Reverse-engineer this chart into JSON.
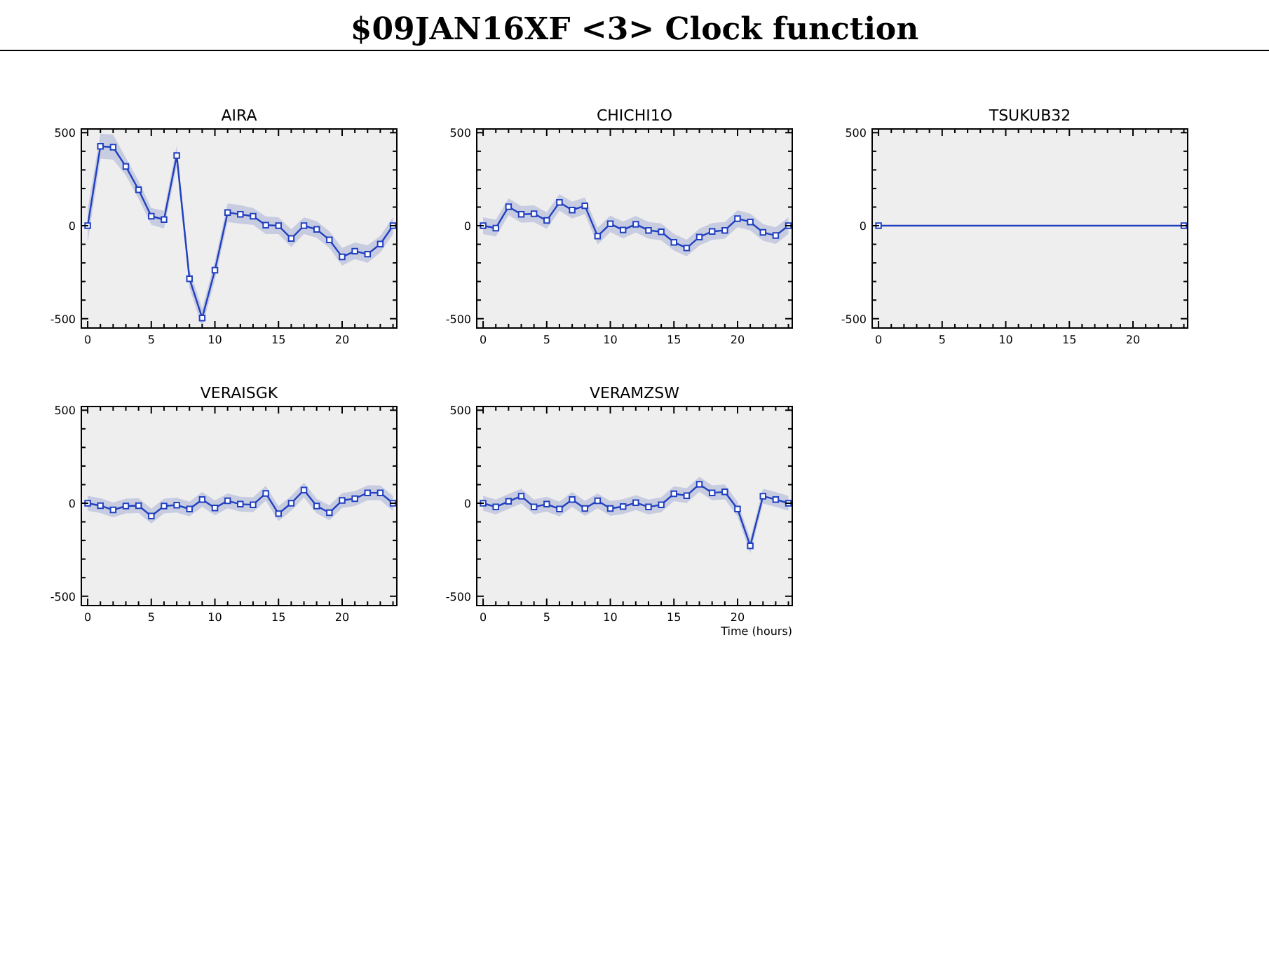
{
  "chart_data": [
    {
      "type": "other",
      "title": "$09JAN16XF <3>  Clock function"
    },
    {
      "type": "line",
      "title": "AIRA",
      "xlim": [
        -0.5,
        24.3
      ],
      "ylim": [
        -550,
        520
      ],
      "xticks": [
        0,
        {
          "value": 1,
          "label": null
        },
        {
          "value": 2,
          "label": null
        },
        {
          "value": 3,
          "label": null
        },
        {
          "value": 4,
          "label": null
        },
        5,
        {
          "value": 6,
          "label": null
        },
        {
          "value": 7,
          "label": null
        },
        {
          "value": 8,
          "label": null
        },
        {
          "value": 9,
          "label": null
        },
        10,
        {
          "value": 11,
          "label": null
        },
        {
          "value": 12,
          "label": null
        },
        {
          "value": 13,
          "label": null
        },
        {
          "value": 14,
          "label": null
        },
        15,
        {
          "value": 16,
          "label": null
        },
        {
          "value": 17,
          "label": null
        },
        {
          "value": 18,
          "label": null
        },
        {
          "value": 19,
          "label": null
        },
        20,
        {
          "value": 21,
          "label": null
        },
        {
          "value": 22,
          "label": null
        },
        {
          "value": 23,
          "label": null
        },
        {
          "value": 24,
          "label": null
        }
      ],
      "yticks": [
        -500,
        {
          "value": -400,
          "label": null
        },
        {
          "value": -300,
          "label": null
        },
        {
          "value": -200,
          "label": null
        },
        {
          "value": -100,
          "label": null
        },
        0,
        {
          "value": 100,
          "label": null
        },
        {
          "value": 200,
          "label": null
        },
        {
          "value": 300,
          "label": null
        },
        {
          "value": 400,
          "label": null
        },
        500
      ],
      "grid": false,
      "marker": "square",
      "line_style": "solid",
      "x": [
        0,
        1,
        2,
        3,
        4,
        5,
        6,
        7,
        8,
        9,
        10,
        11,
        12,
        13,
        14,
        15,
        16,
        17,
        18,
        19,
        20,
        21,
        22,
        23,
        24
      ],
      "series": [
        {
          "color": "#2040c0",
          "values": [
            0,
            427,
            422,
            318,
            193,
            51,
            33,
            377,
            -285,
            -496,
            -239,
            71,
            61,
            51,
            3,
            0,
            -69,
            0,
            -20,
            -76,
            -168,
            -137,
            -153,
            -99,
            0
          ],
          "lower": [
            -90,
            360,
            355,
            270,
            145,
            5,
            -15,
            320,
            -335,
            -545,
            -290,
            20,
            10,
            5,
            -45,
            -45,
            -115,
            -45,
            -65,
            -120,
            -215,
            -180,
            -200,
            -145,
            -45
          ],
          "upper": [
            90,
            495,
            490,
            365,
            240,
            95,
            80,
            430,
            -235,
            -445,
            -190,
            120,
            110,
            95,
            50,
            45,
            -20,
            45,
            25,
            -30,
            -120,
            -90,
            -105,
            -55,
            45
          ]
        }
      ]
    },
    {
      "type": "line",
      "title": "CHICHI1O",
      "xlim": [
        -0.5,
        24.3
      ],
      "ylim": [
        -550,
        520
      ],
      "xticks": [
        0,
        {
          "value": 1,
          "label": null
        },
        {
          "value": 2,
          "label": null
        },
        {
          "value": 3,
          "label": null
        },
        {
          "value": 4,
          "label": null
        },
        5,
        {
          "value": 6,
          "label": null
        },
        {
          "value": 7,
          "label": null
        },
        {
          "value": 8,
          "label": null
        },
        {
          "value": 9,
          "label": null
        },
        10,
        {
          "value": 11,
          "label": null
        },
        {
          "value": 12,
          "label": null
        },
        {
          "value": 13,
          "label": null
        },
        {
          "value": 14,
          "label": null
        },
        15,
        {
          "value": 16,
          "label": null
        },
        {
          "value": 17,
          "label": null
        },
        {
          "value": 18,
          "label": null
        },
        {
          "value": 19,
          "label": null
        },
        20,
        {
          "value": 21,
          "label": null
        },
        {
          "value": 22,
          "label": null
        },
        {
          "value": 23,
          "label": null
        },
        {
          "value": 24,
          "label": null
        }
      ],
      "yticks": [
        -500,
        {
          "value": -400,
          "label": null
        },
        {
          "value": -300,
          "label": null
        },
        {
          "value": -200,
          "label": null
        },
        {
          "value": -100,
          "label": null
        },
        0,
        {
          "value": 100,
          "label": null
        },
        {
          "value": 200,
          "label": null
        },
        {
          "value": 300,
          "label": null
        },
        {
          "value": 400,
          "label": null
        },
        500
      ],
      "grid": false,
      "marker": "square",
      "line_style": "solid",
      "x": [
        0,
        1,
        2,
        3,
        4,
        5,
        6,
        7,
        8,
        9,
        10,
        11,
        12,
        13,
        14,
        15,
        16,
        17,
        18,
        19,
        20,
        21,
        22,
        23,
        24
      ],
      "series": [
        {
          "color": "#2040c0",
          "values": [
            0,
            -13,
            102,
            61,
            64,
            28,
            125,
            84,
            107,
            -56,
            10,
            -23,
            8,
            -25,
            -33,
            -89,
            -120,
            -61,
            -31,
            -25,
            38,
            20,
            -36,
            -53,
            0
          ],
          "lower": [
            -45,
            -58,
            57,
            16,
            19,
            -17,
            80,
            39,
            62,
            -101,
            -35,
            -68,
            -37,
            -70,
            -78,
            -134,
            -165,
            -106,
            -76,
            -70,
            -7,
            -25,
            -81,
            -98,
            -45
          ],
          "upper": [
            45,
            32,
            147,
            106,
            109,
            73,
            170,
            129,
            152,
            -11,
            55,
            22,
            53,
            20,
            12,
            -44,
            -75,
            -16,
            14,
            20,
            83,
            65,
            9,
            -8,
            45
          ]
        }
      ]
    },
    {
      "type": "line",
      "title": "TSUKUB32",
      "xlim": [
        -0.5,
        24.3
      ],
      "ylim": [
        -550,
        520
      ],
      "xticks": [
        0,
        {
          "value": 1,
          "label": null
        },
        {
          "value": 2,
          "label": null
        },
        {
          "value": 3,
          "label": null
        },
        {
          "value": 4,
          "label": null
        },
        5,
        {
          "value": 6,
          "label": null
        },
        {
          "value": 7,
          "label": null
        },
        {
          "value": 8,
          "label": null
        },
        {
          "value": 9,
          "label": null
        },
        10,
        {
          "value": 11,
          "label": null
        },
        {
          "value": 12,
          "label": null
        },
        {
          "value": 13,
          "label": null
        },
        {
          "value": 14,
          "label": null
        },
        15,
        {
          "value": 16,
          "label": null
        },
        {
          "value": 17,
          "label": null
        },
        {
          "value": 18,
          "label": null
        },
        {
          "value": 19,
          "label": null
        },
        20,
        {
          "value": 21,
          "label": null
        },
        {
          "value": 22,
          "label": null
        },
        {
          "value": 23,
          "label": null
        },
        {
          "value": 24,
          "label": null
        }
      ],
      "yticks": [
        -500,
        {
          "value": -400,
          "label": null
        },
        {
          "value": -300,
          "label": null
        },
        {
          "value": -200,
          "label": null
        },
        {
          "value": -100,
          "label": null
        },
        0,
        {
          "value": 100,
          "label": null
        },
        {
          "value": 200,
          "label": null
        },
        {
          "value": 300,
          "label": null
        },
        {
          "value": 400,
          "label": null
        },
        500
      ],
      "grid": false,
      "marker": "square",
      "line_style": "solid",
      "x": [
        0,
        24
      ],
      "series": [
        {
          "color": "#2040c0",
          "values": [
            0,
            0
          ]
        }
      ]
    },
    {
      "type": "line",
      "title": "VERAISGK",
      "xlim": [
        -0.5,
        24.3
      ],
      "ylim": [
        -550,
        520
      ],
      "xticks": [
        0,
        {
          "value": 1,
          "label": null
        },
        {
          "value": 2,
          "label": null
        },
        {
          "value": 3,
          "label": null
        },
        {
          "value": 4,
          "label": null
        },
        5,
        {
          "value": 6,
          "label": null
        },
        {
          "value": 7,
          "label": null
        },
        {
          "value": 8,
          "label": null
        },
        {
          "value": 9,
          "label": null
        },
        10,
        {
          "value": 11,
          "label": null
        },
        {
          "value": 12,
          "label": null
        },
        {
          "value": 13,
          "label": null
        },
        {
          "value": 14,
          "label": null
        },
        15,
        {
          "value": 16,
          "label": null
        },
        {
          "value": 17,
          "label": null
        },
        {
          "value": 18,
          "label": null
        },
        {
          "value": 19,
          "label": null
        },
        20,
        {
          "value": 21,
          "label": null
        },
        {
          "value": 22,
          "label": null
        },
        {
          "value": 23,
          "label": null
        },
        {
          "value": 24,
          "label": null
        }
      ],
      "yticks": [
        -500,
        {
          "value": -400,
          "label": null
        },
        {
          "value": -300,
          "label": null
        },
        {
          "value": -200,
          "label": null
        },
        {
          "value": -100,
          "label": null
        },
        0,
        {
          "value": 100,
          "label": null
        },
        {
          "value": 200,
          "label": null
        },
        {
          "value": 300,
          "label": null
        },
        {
          "value": 400,
          "label": null
        },
        500
      ],
      "grid": false,
      "marker": "square",
      "line_style": "solid",
      "x": [
        0,
        1,
        2,
        3,
        4,
        5,
        6,
        7,
        8,
        9,
        10,
        11,
        12,
        13,
        14,
        15,
        16,
        17,
        18,
        19,
        20,
        21,
        22,
        23,
        24
      ],
      "series": [
        {
          "color": "#2040c0",
          "values": [
            0,
            -13,
            -36,
            -15,
            -13,
            -69,
            -15,
            -10,
            -31,
            20,
            -25,
            13,
            -5,
            -8,
            53,
            -56,
            0,
            71,
            -15,
            -51,
            15,
            25,
            56,
            56,
            0
          ],
          "lower": [
            -40,
            -53,
            -76,
            -55,
            -53,
            -109,
            -55,
            -50,
            -71,
            -20,
            -65,
            -27,
            -45,
            -48,
            13,
            -96,
            -40,
            31,
            -55,
            -91,
            -25,
            -15,
            16,
            16,
            -40
          ],
          "upper": [
            40,
            27,
            4,
            25,
            27,
            -29,
            25,
            30,
            9,
            60,
            15,
            53,
            35,
            32,
            93,
            -16,
            40,
            111,
            25,
            -11,
            55,
            65,
            96,
            96,
            40
          ]
        }
      ]
    },
    {
      "type": "line",
      "title": "VERAMZSW",
      "xlabel": "Time (hours)",
      "xlim": [
        -0.5,
        24.3
      ],
      "ylim": [
        -550,
        520
      ],
      "xticks": [
        0,
        {
          "value": 1,
          "label": null
        },
        {
          "value": 2,
          "label": null
        },
        {
          "value": 3,
          "label": null
        },
        {
          "value": 4,
          "label": null
        },
        5,
        {
          "value": 6,
          "label": null
        },
        {
          "value": 7,
          "label": null
        },
        {
          "value": 8,
          "label": null
        },
        {
          "value": 9,
          "label": null
        },
        10,
        {
          "value": 11,
          "label": null
        },
        {
          "value": 12,
          "label": null
        },
        {
          "value": 13,
          "label": null
        },
        {
          "value": 14,
          "label": null
        },
        15,
        {
          "value": 16,
          "label": null
        },
        {
          "value": 17,
          "label": null
        },
        {
          "value": 18,
          "label": null
        },
        {
          "value": 19,
          "label": null
        },
        20,
        {
          "value": 21,
          "label": null
        },
        {
          "value": 22,
          "label": null
        },
        {
          "value": 23,
          "label": null
        },
        {
          "value": 24,
          "label": null
        }
      ],
      "yticks": [
        -500,
        {
          "value": -400,
          "label": null
        },
        {
          "value": -300,
          "label": null
        },
        {
          "value": -200,
          "label": null
        },
        {
          "value": -100,
          "label": null
        },
        0,
        {
          "value": 100,
          "label": null
        },
        {
          "value": 200,
          "label": null
        },
        {
          "value": 300,
          "label": null
        },
        {
          "value": 400,
          "label": null
        },
        500
      ],
      "grid": false,
      "marker": "square",
      "line_style": "solid",
      "x": [
        0,
        1,
        2,
        3,
        4,
        5,
        6,
        7,
        8,
        9,
        10,
        11,
        12,
        13,
        14,
        15,
        16,
        17,
        18,
        19,
        20,
        21,
        22,
        23,
        24
      ],
      "series": [
        {
          "color": "#2040c0",
          "values": [
            0,
            -20,
            10,
            38,
            -20,
            -5,
            -31,
            20,
            -28,
            13,
            -28,
            -18,
            3,
            -20,
            -8,
            51,
            41,
            102,
            56,
            61,
            -31,
            -229,
            38,
            20,
            0
          ],
          "lower": [
            -40,
            -60,
            -30,
            -2,
            -60,
            -45,
            -71,
            -20,
            -68,
            -27,
            -68,
            -58,
            -37,
            -60,
            -48,
            11,
            1,
            62,
            16,
            21,
            -71,
            -269,
            -2,
            -20,
            -40
          ],
          "upper": [
            40,
            20,
            50,
            78,
            20,
            35,
            9,
            60,
            12,
            53,
            12,
            22,
            43,
            20,
            32,
            91,
            81,
            142,
            96,
            101,
            9,
            -189,
            78,
            60,
            40
          ]
        }
      ]
    }
  ]
}
